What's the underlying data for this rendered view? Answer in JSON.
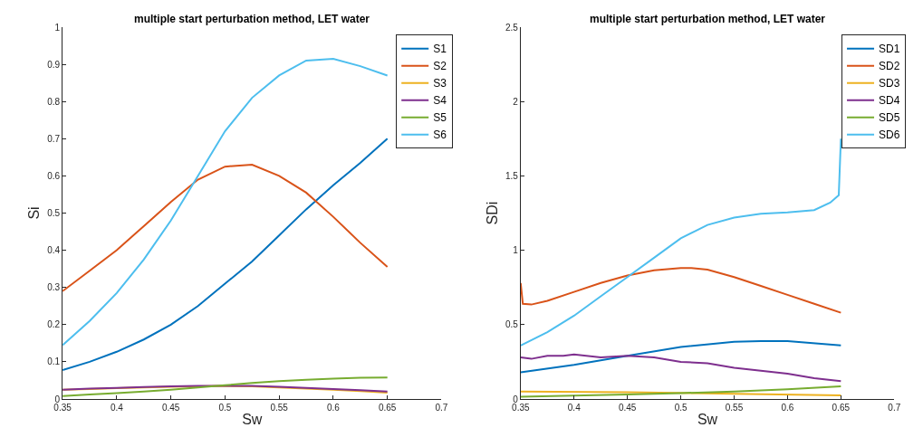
{
  "chart_data": [
    {
      "type": "line",
      "title": "multiple start perturbation method, LET water",
      "xlabel": "Sw",
      "ylabel": "Si",
      "x": [
        0.35,
        0.375,
        0.4,
        0.425,
        0.45,
        0.475,
        0.5,
        0.525,
        0.55,
        0.575,
        0.6,
        0.625,
        0.65
      ],
      "xlim": [
        0.35,
        0.7
      ],
      "xticks": [
        0.35,
        0.4,
        0.45,
        0.5,
        0.55,
        0.6,
        0.65,
        0.7
      ],
      "ylim": [
        0,
        1
      ],
      "yticks": [
        0,
        0.1,
        0.2,
        0.3,
        0.4,
        0.5,
        0.6,
        0.7,
        0.8,
        0.9,
        1
      ],
      "legend": "top right",
      "series": [
        {
          "name": "S1",
          "color": "#0072bd",
          "values": [
            0.078,
            0.1,
            0.127,
            0.16,
            0.2,
            0.25,
            0.31,
            0.37,
            0.44,
            0.51,
            0.575,
            0.635,
            0.7
          ]
        },
        {
          "name": "S2",
          "color": "#d95319",
          "values": [
            0.29,
            0.345,
            0.4,
            0.465,
            0.53,
            0.59,
            0.625,
            0.63,
            0.6,
            0.555,
            0.49,
            0.42,
            0.355
          ]
        },
        {
          "name": "S3",
          "color": "#edb120",
          "values": [
            0.025,
            0.027,
            0.029,
            0.031,
            0.033,
            0.034,
            0.035,
            0.034,
            0.031,
            0.028,
            0.025,
            0.021,
            0.017
          ]
        },
        {
          "name": "S4",
          "color": "#7e2f8e",
          "values": [
            0.025,
            0.028,
            0.03,
            0.032,
            0.034,
            0.035,
            0.035,
            0.035,
            0.033,
            0.03,
            0.027,
            0.024,
            0.02
          ]
        },
        {
          "name": "S5",
          "color": "#77ac30",
          "values": [
            0.008,
            0.012,
            0.016,
            0.02,
            0.025,
            0.031,
            0.037,
            0.043,
            0.048,
            0.052,
            0.055,
            0.057,
            0.058
          ]
        },
        {
          "name": "S6",
          "color": "#4dbeee",
          "values": [
            0.145,
            0.21,
            0.285,
            0.375,
            0.48,
            0.6,
            0.72,
            0.81,
            0.87,
            0.91,
            0.915,
            0.895,
            0.87
          ]
        }
      ]
    },
    {
      "type": "line",
      "title": "multiple start perturbation method, LET water",
      "xlabel": "Sw",
      "ylabel": "SDi",
      "xlim": [
        0.35,
        0.7
      ],
      "xticks": [
        0.35,
        0.4,
        0.45,
        0.5,
        0.55,
        0.6,
        0.65,
        0.7
      ],
      "ylim": [
        0,
        2.5
      ],
      "yticks": [
        0,
        0.5,
        1,
        1.5,
        2,
        2.5
      ],
      "legend": "top right",
      "series": [
        {
          "name": "SD1",
          "color": "#0072bd",
          "x": [
            0.35,
            0.4,
            0.45,
            0.5,
            0.55,
            0.575,
            0.6,
            0.65
          ],
          "values": [
            0.18,
            0.23,
            0.29,
            0.35,
            0.385,
            0.39,
            0.39,
            0.36
          ]
        },
        {
          "name": "SD2",
          "color": "#d95319",
          "x": [
            0.35,
            0.352,
            0.36,
            0.375,
            0.4,
            0.425,
            0.45,
            0.475,
            0.5,
            0.51,
            0.525,
            0.55,
            0.575,
            0.6,
            0.625,
            0.65
          ],
          "values": [
            0.78,
            0.64,
            0.635,
            0.66,
            0.72,
            0.78,
            0.83,
            0.865,
            0.88,
            0.88,
            0.87,
            0.82,
            0.76,
            0.7,
            0.64,
            0.58
          ]
        },
        {
          "name": "SD3",
          "color": "#edb120",
          "x": [
            0.35,
            0.45,
            0.55,
            0.65
          ],
          "values": [
            0.05,
            0.045,
            0.035,
            0.025
          ]
        },
        {
          "name": "SD4",
          "color": "#7e2f8e",
          "x": [
            0.35,
            0.36,
            0.375,
            0.39,
            0.4,
            0.425,
            0.45,
            0.475,
            0.5,
            0.525,
            0.55,
            0.575,
            0.6,
            0.625,
            0.65
          ],
          "values": [
            0.28,
            0.27,
            0.29,
            0.29,
            0.3,
            0.28,
            0.29,
            0.28,
            0.25,
            0.24,
            0.21,
            0.19,
            0.17,
            0.14,
            0.12
          ]
        },
        {
          "name": "SD5",
          "color": "#77ac30",
          "x": [
            0.35,
            0.45,
            0.5,
            0.55,
            0.6,
            0.65
          ],
          "values": [
            0.015,
            0.03,
            0.04,
            0.05,
            0.065,
            0.085
          ]
        },
        {
          "name": "SD6",
          "color": "#4dbeee",
          "x": [
            0.35,
            0.375,
            0.4,
            0.425,
            0.45,
            0.475,
            0.5,
            0.525,
            0.55,
            0.575,
            0.6,
            0.625,
            0.64,
            0.648,
            0.65
          ],
          "values": [
            0.36,
            0.45,
            0.56,
            0.69,
            0.82,
            0.95,
            1.08,
            1.17,
            1.22,
            1.245,
            1.255,
            1.27,
            1.32,
            1.37,
            1.75
          ]
        }
      ]
    }
  ]
}
